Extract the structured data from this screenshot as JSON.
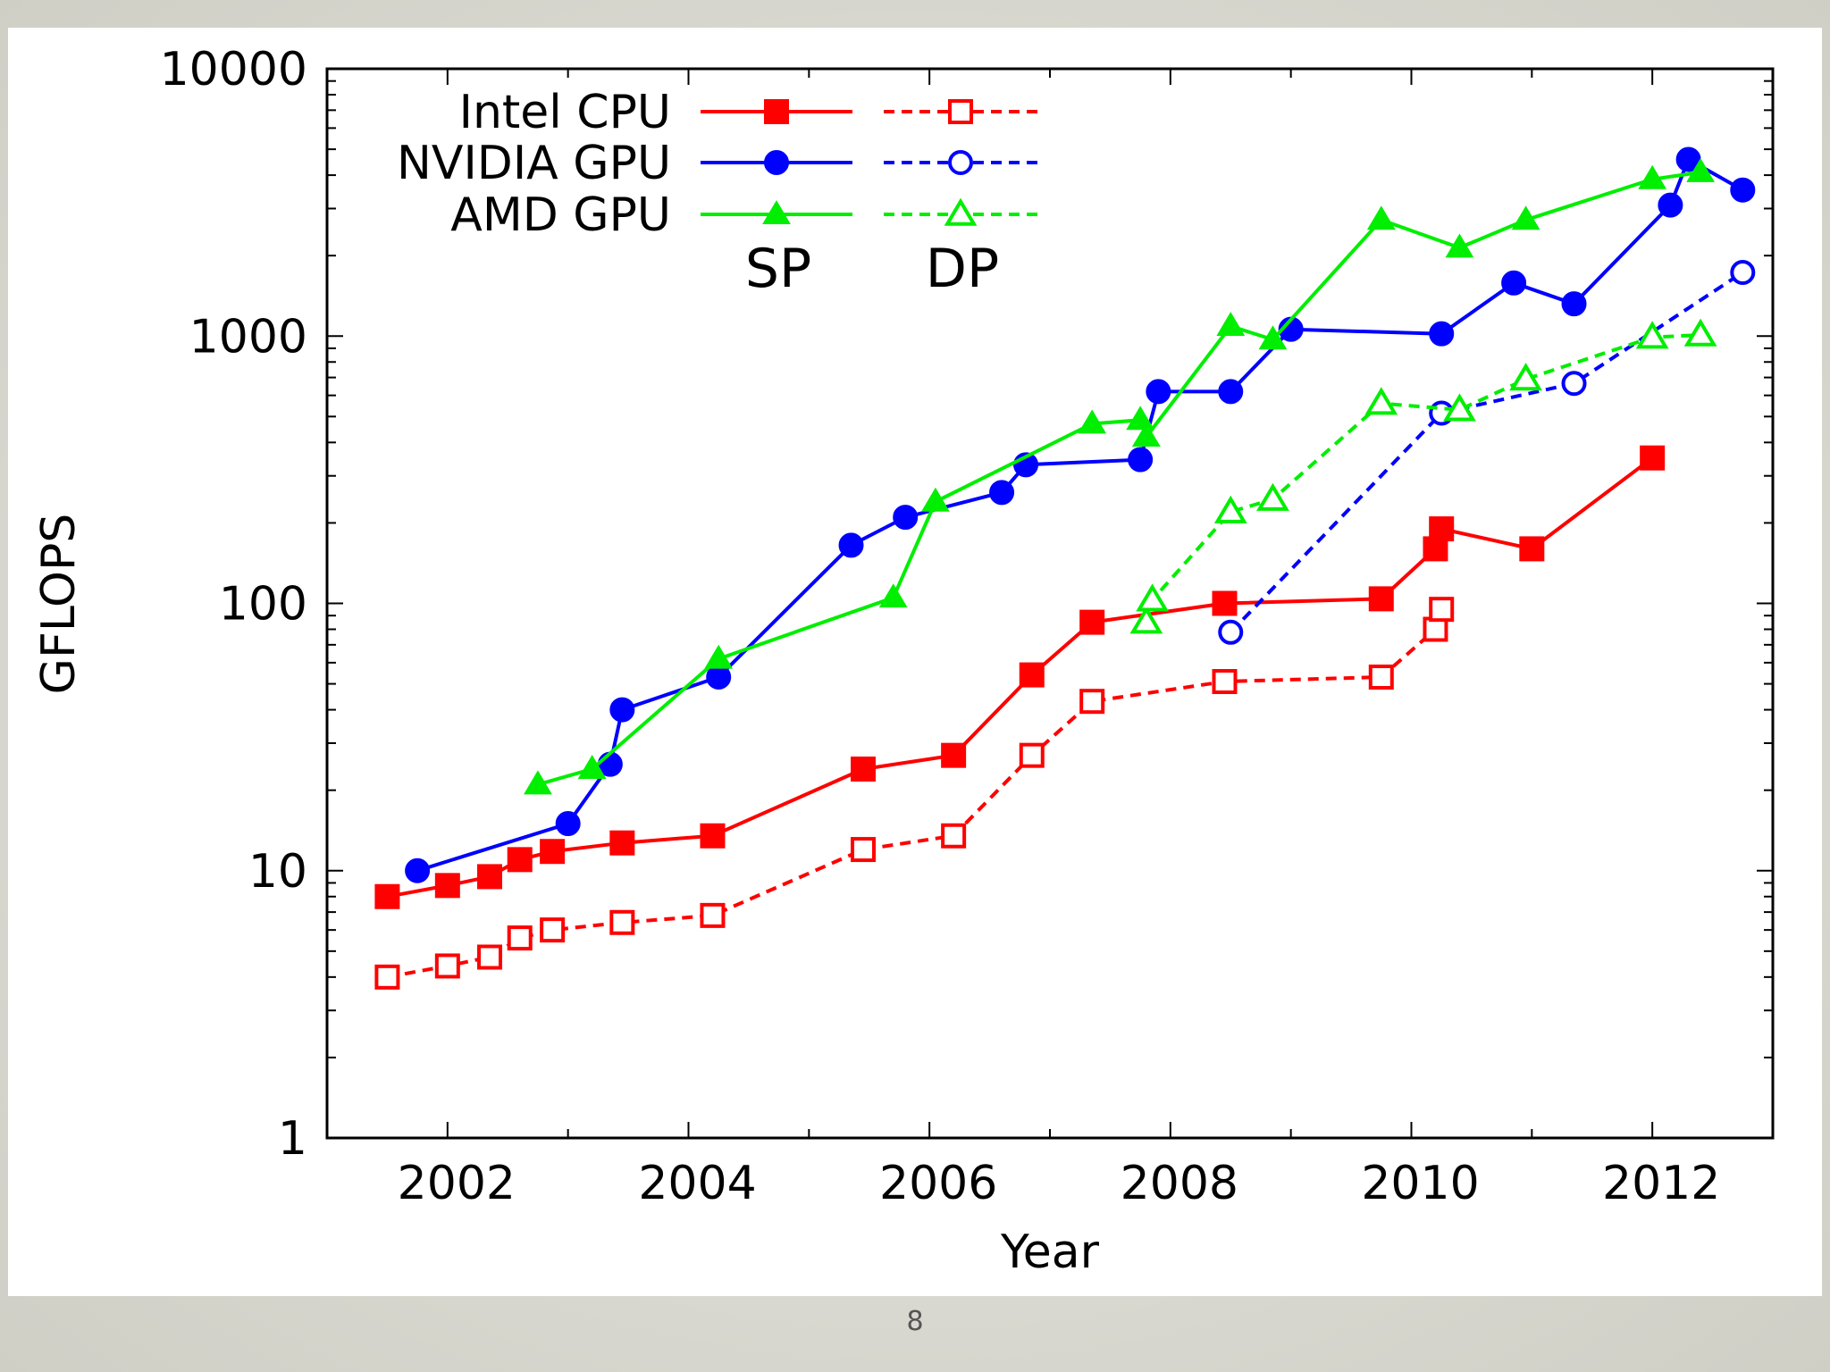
{
  "slide": {
    "page_number": "8"
  },
  "colors": {
    "intel": "#ff0000",
    "nvidia": "#0000ff",
    "amd": "#00ee00"
  },
  "chart_data": {
    "type": "line",
    "title": "",
    "xlabel": "Year",
    "ylabel": "GFLOPS",
    "xlim": [
      2001.0,
      2013.0
    ],
    "ylim": [
      1,
      10000
    ],
    "y_scale": "log",
    "grid": false,
    "x_ticks": [
      "2002",
      "2004",
      "2006",
      "2008",
      "2010",
      "2012"
    ],
    "y_ticks": [
      "1",
      "10",
      "100",
      "1000",
      "10000"
    ],
    "legend": {
      "placement": "top-left",
      "rows": [
        "Intel CPU",
        "NVIDIA GPU",
        "AMD GPU"
      ],
      "columns": [
        "SP",
        "DP"
      ]
    },
    "series": [
      {
        "vendor": "Intel CPU",
        "precision": "SP",
        "color": "#ff0000",
        "marker": "filled-square",
        "line": "solid",
        "points": [
          [
            2001.5,
            8
          ],
          [
            2002.0,
            8.8
          ],
          [
            2002.35,
            9.5
          ],
          [
            2002.6,
            11
          ],
          [
            2002.87,
            11.8
          ],
          [
            2003.45,
            12.7
          ],
          [
            2004.2,
            13.5
          ],
          [
            2005.45,
            24
          ],
          [
            2006.2,
            27
          ],
          [
            2006.85,
            54
          ],
          [
            2007.35,
            85
          ],
          [
            2008.45,
            100
          ],
          [
            2009.75,
            104
          ],
          [
            2010.2,
            160
          ],
          [
            2010.25,
            190
          ],
          [
            2011.0,
            160
          ],
          [
            2012.0,
            350
          ]
        ]
      },
      {
        "vendor": "Intel CPU",
        "precision": "DP",
        "color": "#ff0000",
        "marker": "open-square",
        "line": "dashed",
        "points": [
          [
            2001.5,
            4
          ],
          [
            2002.0,
            4.4
          ],
          [
            2002.35,
            4.75
          ],
          [
            2002.6,
            5.6
          ],
          [
            2002.87,
            6.0
          ],
          [
            2003.45,
            6.4
          ],
          [
            2004.2,
            6.8
          ],
          [
            2005.45,
            12
          ],
          [
            2006.2,
            13.5
          ],
          [
            2006.85,
            27
          ],
          [
            2007.35,
            43
          ],
          [
            2008.45,
            51
          ],
          [
            2009.75,
            53
          ],
          [
            2010.2,
            80
          ],
          [
            2010.25,
            95
          ]
        ]
      },
      {
        "vendor": "NVIDIA GPU",
        "precision": "SP",
        "color": "#0000ff",
        "marker": "filled-circle",
        "line": "solid",
        "points": [
          [
            2001.75,
            10
          ],
          [
            2003.0,
            15
          ],
          [
            2003.35,
            25
          ],
          [
            2003.45,
            40
          ],
          [
            2004.25,
            53
          ],
          [
            2005.35,
            165
          ],
          [
            2005.8,
            210
          ],
          [
            2006.6,
            260
          ],
          [
            2006.8,
            330
          ],
          [
            2007.75,
            345
          ],
          [
            2007.9,
            620
          ],
          [
            2008.5,
            620
          ],
          [
            2009.0,
            1060
          ],
          [
            2010.25,
            1020
          ],
          [
            2010.85,
            1580
          ],
          [
            2011.35,
            1320
          ],
          [
            2012.15,
            3090
          ],
          [
            2012.3,
            4580
          ],
          [
            2012.75,
            3520
          ]
        ]
      },
      {
        "vendor": "NVIDIA GPU",
        "precision": "DP",
        "color": "#0000ff",
        "marker": "open-circle",
        "line": "dashed",
        "points": [
          [
            2008.5,
            78
          ],
          [
            2010.25,
            515
          ],
          [
            2011.35,
            665
          ],
          [
            2012.75,
            1730
          ]
        ]
      },
      {
        "vendor": "AMD GPU",
        "precision": "SP",
        "color": "#00ee00",
        "marker": "filled-triangle",
        "line": "solid",
        "points": [
          [
            2002.75,
            21
          ],
          [
            2003.2,
            24
          ],
          [
            2004.25,
            62
          ],
          [
            2005.7,
            105
          ],
          [
            2006.05,
            240
          ],
          [
            2007.35,
            470
          ],
          [
            2007.75,
            485
          ],
          [
            2007.8,
            420
          ],
          [
            2008.5,
            1090
          ],
          [
            2008.85,
            970
          ],
          [
            2009.75,
            2720
          ],
          [
            2010.4,
            2140
          ],
          [
            2010.95,
            2720
          ],
          [
            2012.0,
            3860
          ],
          [
            2012.4,
            4100
          ]
        ]
      },
      {
        "vendor": "AMD GPU",
        "precision": "DP",
        "color": "#00ee00",
        "marker": "open-triangle",
        "line": "dashed",
        "points": [
          [
            2007.8,
            85
          ],
          [
            2007.85,
            103
          ],
          [
            2008.5,
            220
          ],
          [
            2008.85,
            245
          ],
          [
            2009.75,
            560
          ],
          [
            2010.4,
            530
          ],
          [
            2010.95,
            690
          ],
          [
            2012.0,
            990
          ],
          [
            2012.4,
            1010
          ]
        ]
      }
    ]
  }
}
